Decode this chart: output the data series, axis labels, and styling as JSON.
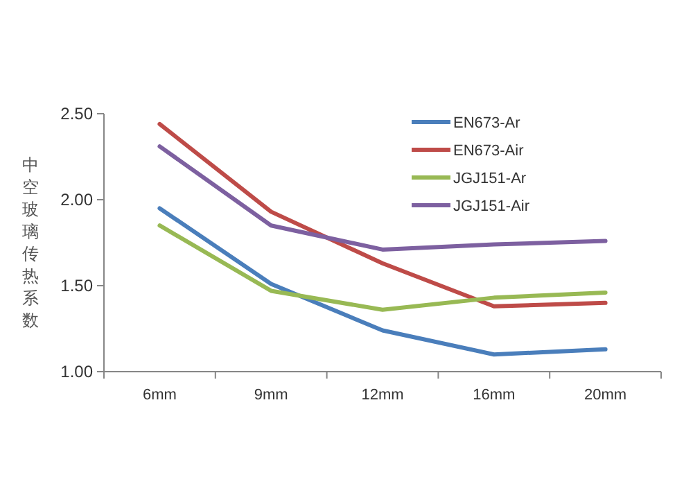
{
  "chart_data": {
    "type": "line",
    "ylabel": "中空玻璃传热系数",
    "categories": [
      "6mm",
      "9mm",
      "12mm",
      "16mm",
      "20mm"
    ],
    "ylim": [
      1.0,
      2.5
    ],
    "yticks": [
      {
        "value": 1.0,
        "label": "1.00"
      },
      {
        "value": 1.5,
        "label": "1.50"
      },
      {
        "value": 2.0,
        "label": "2.00"
      },
      {
        "value": 2.5,
        "label": "2.50"
      }
    ],
    "legend": "top right",
    "series": [
      {
        "name": "EN673-Ar",
        "color": "#4a7ebb",
        "values": [
          1.95,
          1.51,
          1.24,
          1.1,
          1.13
        ]
      },
      {
        "name": "EN673-Air",
        "color": "#be4b48",
        "values": [
          2.44,
          1.93,
          1.63,
          1.38,
          1.4
        ]
      },
      {
        "name": "JGJ151-Ar",
        "color": "#98b954",
        "values": [
          1.85,
          1.47,
          1.36,
          1.43,
          1.46
        ]
      },
      {
        "name": "JGJ151-Air",
        "color": "#7d60a0",
        "values": [
          2.31,
          1.85,
          1.71,
          1.74,
          1.76
        ]
      }
    ]
  }
}
